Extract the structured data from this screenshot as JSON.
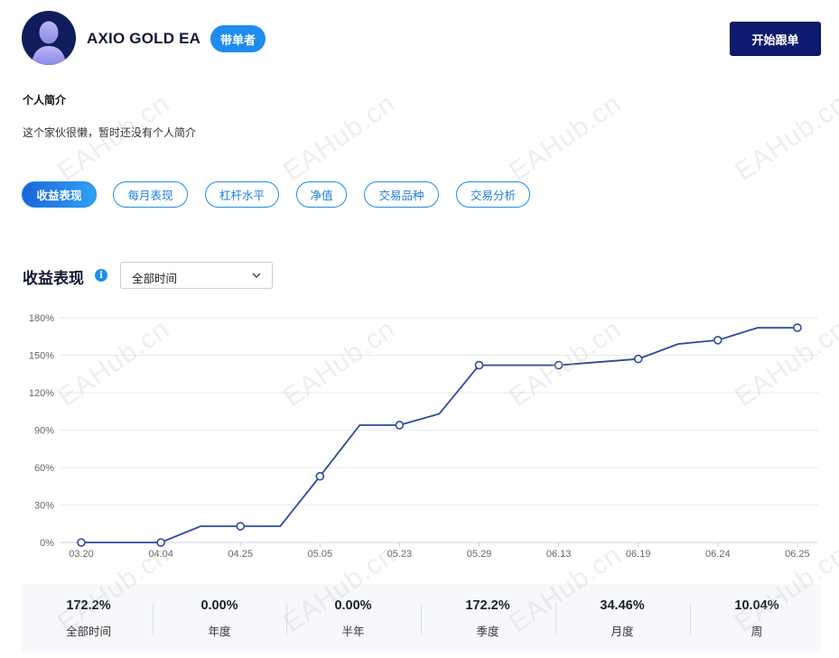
{
  "profile": {
    "name": "AXIO GOLD EA",
    "role_badge": "带单者",
    "follow_button": "开始跟单",
    "bio_title": "个人简介",
    "bio_text": "这个家伙很懒，暂时还没有个人简介"
  },
  "tabs": [
    {
      "label": "收益表现",
      "active": true
    },
    {
      "label": "每月表现",
      "active": false
    },
    {
      "label": "杠杆水平",
      "active": false
    },
    {
      "label": "净值",
      "active": false
    },
    {
      "label": "交易品种",
      "active": false
    },
    {
      "label": "交易分析",
      "active": false
    }
  ],
  "section": {
    "title": "收益表现",
    "info_icon": "info-icon",
    "period_select_value": "全部时间"
  },
  "chart_data": {
    "type": "line",
    "title": "",
    "xlabel": "",
    "ylabel": "",
    "ylim": [
      0,
      180
    ],
    "y_ticks": [
      "0%",
      "30%",
      "60%",
      "90%",
      "120%",
      "150%",
      "180%"
    ],
    "x_ticks": [
      "03.20",
      "04.04",
      "04.25",
      "05.05",
      "05.23",
      "05.29",
      "06.13",
      "06.19",
      "06.24",
      "06.25"
    ],
    "x": [
      0,
      1,
      1.5,
      2,
      2.5,
      3,
      3.5,
      4,
      4.5,
      5,
      6,
      7,
      7.5,
      8,
      8.5,
      9
    ],
    "values": [
      0,
      0,
      13,
      13,
      13,
      53,
      94,
      94,
      103,
      142,
      142,
      147,
      159,
      162,
      172,
      172
    ],
    "markers": [
      true,
      true,
      false,
      true,
      false,
      true,
      false,
      true,
      false,
      true,
      true,
      true,
      false,
      true,
      false,
      true
    ],
    "grid": true,
    "line_color": "#2a4a9e"
  },
  "stats": [
    {
      "value": "172.2%",
      "label": "全部时间"
    },
    {
      "value": "0.00%",
      "label": "年度"
    },
    {
      "value": "0.00%",
      "label": "半年"
    },
    {
      "value": "172.2%",
      "label": "季度"
    },
    {
      "value": "34.46%",
      "label": "月度"
    },
    {
      "value": "10.04%",
      "label": "周"
    }
  ],
  "watermark": "EAHub.cn"
}
